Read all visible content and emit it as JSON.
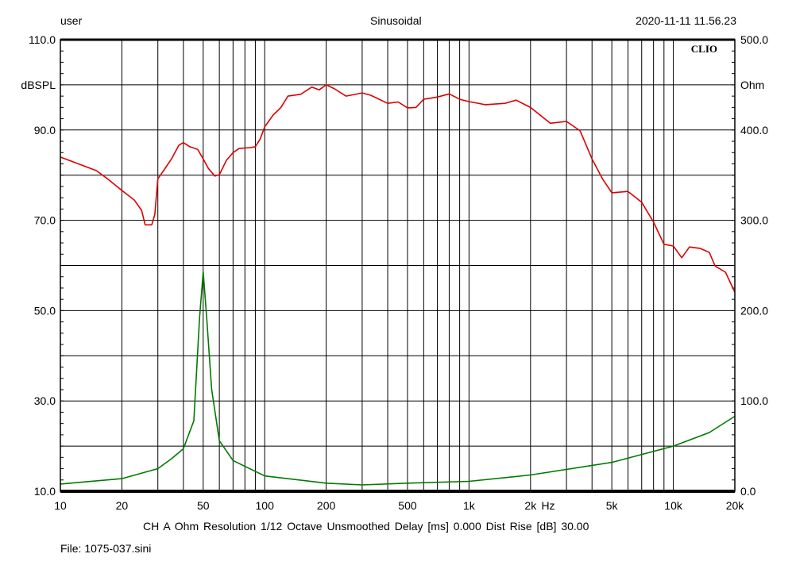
{
  "header": {
    "user": "user",
    "mode": "Sinusoidal",
    "datetime": "2020-11-11 11.56.23"
  },
  "logo": "CLIO",
  "footer": {
    "settings": "CH A   Ohm   Resolution 1/12 Octave   Unsmoothed   Delay [ms] 0.000   Dist Rise [dB] 30.00",
    "file": "File: 1075-037.sini"
  },
  "chart_data": {
    "type": "line",
    "xscale": "log",
    "xlim": [
      10,
      20000
    ],
    "xlabel": "Hz",
    "x_ticks": [
      {
        "v": 10,
        "l": "10"
      },
      {
        "v": 20,
        "l": "20"
      },
      {
        "v": 50,
        "l": "50"
      },
      {
        "v": 100,
        "l": "100"
      },
      {
        "v": 200,
        "l": "200"
      },
      {
        "v": 500,
        "l": "500"
      },
      {
        "v": 1000,
        "l": "1k"
      },
      {
        "v": 2000,
        "l": "2k"
      },
      {
        "v": 5000,
        "l": "5k"
      },
      {
        "v": 10000,
        "l": "10k"
      },
      {
        "v": 20000,
        "l": "20k"
      }
    ],
    "y_left": {
      "label": "dBSPL",
      "lim": [
        10,
        110
      ],
      "ticks": [
        {
          "v": 110,
          "l": "110.0"
        },
        {
          "v": 90,
          "l": "90.0"
        },
        {
          "v": 70,
          "l": "70.0"
        },
        {
          "v": 50,
          "l": "50.0"
        },
        {
          "v": 30,
          "l": "30.0"
        },
        {
          "v": 10,
          "l": "10.0"
        }
      ]
    },
    "y_right": {
      "label": "Ohm",
      "lim": [
        0,
        500
      ],
      "ticks": [
        {
          "v": 500,
          "l": "500.0"
        },
        {
          "v": 400,
          "l": "400.0"
        },
        {
          "v": 300,
          "l": "300.0"
        },
        {
          "v": 200,
          "l": "200.0"
        },
        {
          "v": 100,
          "l": "100.0"
        },
        {
          "v": 0,
          "l": "0.0"
        }
      ]
    },
    "grid": true,
    "series": [
      {
        "name": "SPL",
        "axis": "left",
        "color": "#dd0000",
        "x": [
          10,
          15,
          17,
          20,
          23,
          25,
          26,
          28,
          29,
          30,
          32,
          35,
          38,
          40,
          43,
          47,
          50,
          53,
          57,
          60,
          65,
          70,
          75,
          85,
          90,
          95,
          100,
          110,
          120,
          130,
          150,
          170,
          185,
          200,
          220,
          250,
          300,
          330,
          400,
          450,
          500,
          550,
          600,
          700,
          800,
          900,
          1000,
          1200,
          1500,
          1700,
          2000,
          2500,
          3000,
          3500,
          4000,
          4500,
          5000,
          6000,
          7000,
          8000,
          9000,
          10000,
          11000,
          12000,
          13500,
          15000,
          16000,
          18000,
          20000
        ],
        "y": [
          84.0,
          81.0,
          79.2,
          76.6,
          74.5,
          72.2,
          69.0,
          69.0,
          71.3,
          79.2,
          81.0,
          83.6,
          86.6,
          87.2,
          86.3,
          85.7,
          83.6,
          81.5,
          79.8,
          80.1,
          83.3,
          85.0,
          85.9,
          86.1,
          86.3,
          88.0,
          90.7,
          93.3,
          95.0,
          97.5,
          97.9,
          99.5,
          98.9,
          100.0,
          99.1,
          97.5,
          98.2,
          97.7,
          95.9,
          96.2,
          94.9,
          95.0,
          96.8,
          97.3,
          98.0,
          96.8,
          96.3,
          95.6,
          95.9,
          96.6,
          95.0,
          91.5,
          91.9,
          89.8,
          83.6,
          79.2,
          76.1,
          76.4,
          74.0,
          69.6,
          64.7,
          64.3,
          61.7,
          64.1,
          63.8,
          62.9,
          59.9,
          58.5,
          54.1
        ]
      },
      {
        "name": "Impedance",
        "axis": "right",
        "color": "#007a00",
        "x": [
          10,
          20,
          30,
          35,
          40,
          45,
          48,
          50,
          52,
          55,
          60,
          70,
          100,
          200,
          300,
          500,
          1000,
          2000,
          5000,
          10000,
          15000,
          20000
        ],
        "y": [
          8,
          14,
          25,
          36,
          47,
          78,
          192,
          243,
          192,
          113,
          56,
          34,
          17,
          9,
          7,
          9,
          11,
          18,
          32,
          50,
          65,
          83
        ]
      }
    ]
  }
}
